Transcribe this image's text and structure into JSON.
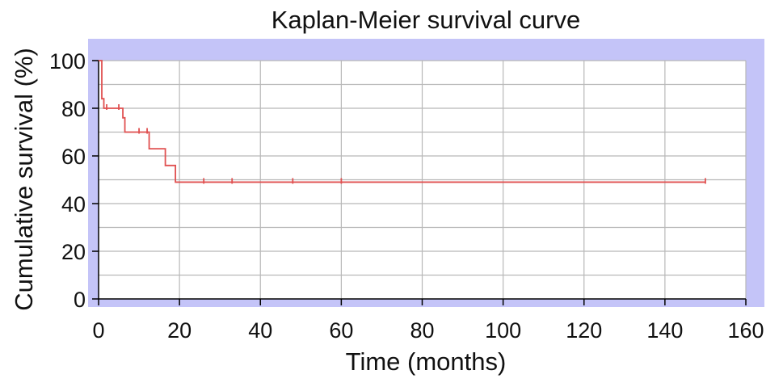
{
  "chart_data": {
    "type": "line",
    "title": "Kaplan-Meier survival curve",
    "xlabel": "Time (months)",
    "ylabel": "Cumulative survival (%)",
    "xlim": [
      0,
      160
    ],
    "ylim": [
      0,
      100
    ],
    "xticks": [
      0,
      20,
      40,
      60,
      80,
      100,
      120,
      140,
      160
    ],
    "yticks": [
      0,
      20,
      40,
      60,
      80,
      100
    ],
    "grid": true,
    "colors": {
      "curve": "#e05050",
      "frame_fill": "#c4c4f8",
      "plot_bg": "#ffffff",
      "grid": "#b8b8b8",
      "axis": "#000000"
    },
    "series": [
      {
        "step_points": [
          [
            0,
            100
          ],
          [
            0.8,
            100
          ],
          [
            0.8,
            84
          ],
          [
            1.3,
            84
          ],
          [
            1.3,
            80
          ],
          [
            6.0,
            80
          ],
          [
            6.0,
            76
          ],
          [
            6.5,
            76
          ],
          [
            6.5,
            70
          ],
          [
            12.5,
            70
          ],
          [
            12.5,
            63
          ],
          [
            16.5,
            63
          ],
          [
            16.5,
            56
          ],
          [
            19.0,
            56
          ],
          [
            19.0,
            49
          ],
          [
            150,
            49
          ]
        ],
        "censor_marks": [
          [
            2,
            80
          ],
          [
            5,
            80
          ],
          [
            10,
            70
          ],
          [
            12,
            70
          ],
          [
            26,
            49
          ],
          [
            33,
            49
          ],
          [
            48,
            49
          ],
          [
            60,
            49
          ],
          [
            150,
            49
          ]
        ]
      }
    ]
  }
}
